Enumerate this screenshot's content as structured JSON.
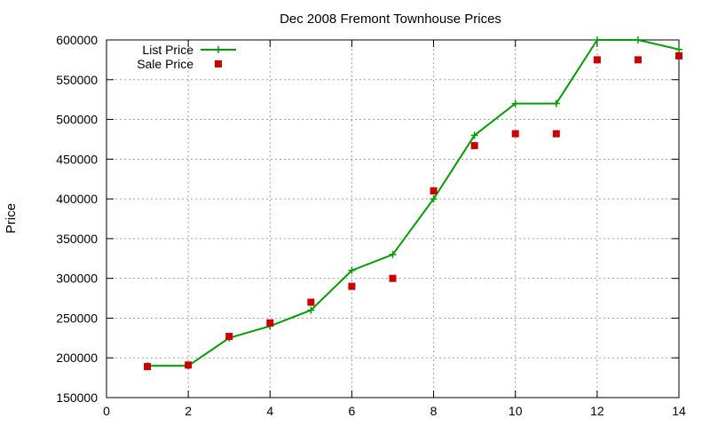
{
  "chart_data": {
    "type": "line",
    "title": "Dec 2008 Fremont Townhouse Prices",
    "xlabel": "",
    "ylabel": "Price",
    "xlim": [
      0,
      14
    ],
    "ylim": [
      150000,
      600000
    ],
    "x_ticks": [
      0,
      2,
      4,
      6,
      8,
      10,
      12,
      14
    ],
    "y_ticks": [
      150000,
      200000,
      250000,
      300000,
      350000,
      400000,
      450000,
      500000,
      550000,
      600000
    ],
    "grid": true,
    "legend_position": "top-left",
    "series": [
      {
        "name": "List Price",
        "style": "line-with-plus-markers",
        "color": "#00a000",
        "x": [
          1,
          2,
          3,
          4,
          5,
          6,
          7,
          8,
          9,
          10,
          11,
          12,
          13,
          14
        ],
        "y": [
          190000,
          190000,
          225000,
          240000,
          260000,
          310000,
          330000,
          400000,
          480000,
          520000,
          520000,
          600000,
          600000,
          588000
        ]
      },
      {
        "name": "Sale Price",
        "style": "square-markers",
        "color": "#cc0000",
        "x": [
          1,
          2,
          3,
          4,
          5,
          6,
          7,
          8,
          9,
          10,
          11,
          12,
          13,
          14
        ],
        "y": [
          189000,
          191000,
          227000,
          244000,
          270000,
          290000,
          300000,
          410000,
          467000,
          482000,
          482000,
          575000,
          575000,
          580000
        ]
      }
    ]
  }
}
